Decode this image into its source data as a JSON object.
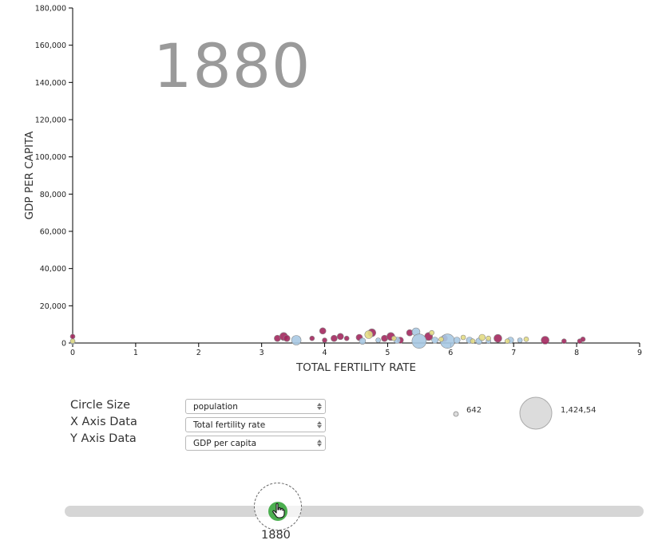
{
  "year_display": "1880",
  "controls": {
    "circle_size": {
      "label": "Circle Size",
      "value": "population"
    },
    "x_axis": {
      "label": "X Axis Data",
      "value": "Total fertility rate"
    },
    "y_axis": {
      "label": "Y Axis Data",
      "value": "GDP per capita"
    }
  },
  "size_legend": {
    "small_label": "642",
    "large_label": "1,424,54"
  },
  "slider": {
    "year": "1880",
    "min": 1800,
    "max": 2018,
    "value": 1880
  },
  "colors": {
    "blue": "#a9c9e3",
    "yellow": "#e3dc84",
    "purple": "#a3285e",
    "slider_knob": "#4caf50"
  },
  "chart_data": {
    "type": "scatter",
    "title": "1880",
    "xlabel": "TOTAL FERTILITY RATE",
    "ylabel": "GDP PER CAPITA",
    "xlim": [
      0,
      9
    ],
    "ylim": [
      0,
      180000
    ],
    "x_ticks": [
      "0",
      "1",
      "2",
      "3",
      "4",
      "5",
      "6",
      "7",
      "8",
      "9"
    ],
    "y_ticks": [
      "0",
      "20,000",
      "40,000",
      "60,000",
      "80,000",
      "100,000",
      "120,000",
      "140,000",
      "160,000",
      "180,000"
    ],
    "series": [
      {
        "color": "purple",
        "points": [
          {
            "x": 0.0,
            "y": 3500,
            "r": 3
          },
          {
            "x": 3.25,
            "y": 2500,
            "r": 4
          },
          {
            "x": 3.35,
            "y": 3500,
            "r": 5
          },
          {
            "x": 3.4,
            "y": 2500,
            "r": 4
          },
          {
            "x": 3.8,
            "y": 2500,
            "r": 3
          },
          {
            "x": 3.97,
            "y": 6500,
            "r": 4
          },
          {
            "x": 4.0,
            "y": 1500,
            "r": 3
          },
          {
            "x": 4.15,
            "y": 2500,
            "r": 4
          },
          {
            "x": 4.25,
            "y": 3500,
            "r": 4
          },
          {
            "x": 4.35,
            "y": 2500,
            "r": 3
          },
          {
            "x": 4.55,
            "y": 3000,
            "r": 4
          },
          {
            "x": 4.75,
            "y": 5500,
            "r": 5
          },
          {
            "x": 4.95,
            "y": 2500,
            "r": 4
          },
          {
            "x": 5.05,
            "y": 3500,
            "r": 5
          },
          {
            "x": 5.2,
            "y": 1500,
            "r": 4
          },
          {
            "x": 5.35,
            "y": 5500,
            "r": 4
          },
          {
            "x": 5.65,
            "y": 3500,
            "r": 5
          },
          {
            "x": 5.9,
            "y": 2500,
            "r": 4
          },
          {
            "x": 6.75,
            "y": 2500,
            "r": 5
          },
          {
            "x": 7.5,
            "y": 1500,
            "r": 5
          },
          {
            "x": 7.8,
            "y": 1000,
            "r": 3
          },
          {
            "x": 8.05,
            "y": 1000,
            "r": 3
          },
          {
            "x": 8.1,
            "y": 2000,
            "r": 3
          }
        ]
      },
      {
        "color": "blue",
        "points": [
          {
            "x": 0.0,
            "y": 500,
            "r": 3
          },
          {
            "x": 3.55,
            "y": 1500,
            "r": 6
          },
          {
            "x": 4.6,
            "y": 1000,
            "r": 4
          },
          {
            "x": 4.85,
            "y": 1500,
            "r": 3
          },
          {
            "x": 5.15,
            "y": 1500,
            "r": 4
          },
          {
            "x": 5.45,
            "y": 6000,
            "r": 5
          },
          {
            "x": 5.5,
            "y": 1000,
            "r": 9
          },
          {
            "x": 5.95,
            "y": 1000,
            "r": 9
          },
          {
            "x": 5.75,
            "y": 1500,
            "r": 4
          },
          {
            "x": 6.1,
            "y": 1500,
            "r": 4
          },
          {
            "x": 6.3,
            "y": 1500,
            "r": 4
          },
          {
            "x": 6.45,
            "y": 1000,
            "r": 4
          },
          {
            "x": 6.6,
            "y": 1000,
            "r": 3
          },
          {
            "x": 6.95,
            "y": 1500,
            "r": 4
          },
          {
            "x": 7.1,
            "y": 1500,
            "r": 3
          }
        ]
      },
      {
        "color": "yellow",
        "points": [
          {
            "x": 0.0,
            "y": 1000,
            "r": 3
          },
          {
            "x": 4.7,
            "y": 4500,
            "r": 5
          },
          {
            "x": 5.1,
            "y": 2500,
            "r": 3
          },
          {
            "x": 5.7,
            "y": 5500,
            "r": 3
          },
          {
            "x": 5.85,
            "y": 2000,
            "r": 3
          },
          {
            "x": 6.2,
            "y": 3000,
            "r": 3
          },
          {
            "x": 6.35,
            "y": 1000,
            "r": 3
          },
          {
            "x": 6.5,
            "y": 3000,
            "r": 4
          },
          {
            "x": 6.6,
            "y": 2500,
            "r": 3
          },
          {
            "x": 6.9,
            "y": 1000,
            "r": 3
          },
          {
            "x": 7.2,
            "y": 2000,
            "r": 3
          }
        ]
      }
    ]
  }
}
